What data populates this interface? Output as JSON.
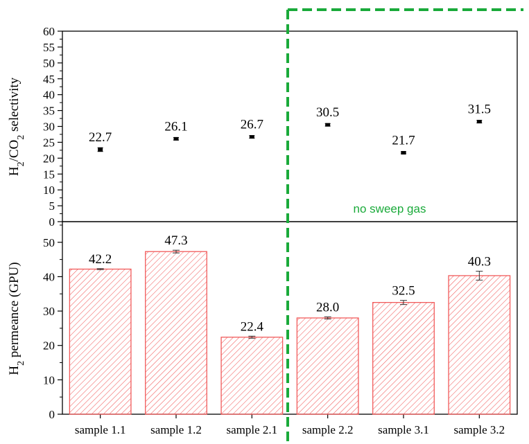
{
  "chart_data": [
    {
      "type": "scatter",
      "categories": [
        "sample 1.1",
        "sample 1.2",
        "sample 2.1",
        "sample 2.2",
        "sample 3.1",
        "sample 3.2"
      ],
      "values": [
        22.7,
        26.1,
        26.7,
        30.5,
        21.7,
        31.5
      ],
      "value_labels": [
        "22.7",
        "26.1",
        "26.7",
        "30.5",
        "21.7",
        "31.5"
      ],
      "errors": [
        0.6,
        0.4,
        0.4,
        0.4,
        0.3,
        0.4
      ],
      "ylabel_parts": [
        "H",
        "2",
        "/CO",
        "2",
        " selectivity"
      ],
      "ylim": [
        0,
        60
      ],
      "yticks": [
        0,
        5,
        10,
        15,
        20,
        25,
        30,
        35,
        40,
        45,
        50,
        55,
        60
      ],
      "marker_color": "#000000"
    },
    {
      "type": "bar",
      "categories": [
        "sample 1.1",
        "sample 1.2",
        "sample 2.1",
        "sample 2.2",
        "sample 3.1",
        "sample 3.2"
      ],
      "values": [
        42.2,
        47.3,
        22.4,
        28.0,
        32.5,
        40.3
      ],
      "value_labels": [
        "42.2",
        "47.3",
        "22.4",
        "28.0",
        "32.5",
        "40.3"
      ],
      "errors": [
        0.15,
        0.4,
        0.3,
        0.3,
        0.6,
        1.3
      ],
      "ylabel_parts": [
        "H",
        "2",
        " permeance (GPU)"
      ],
      "ylim": [
        0,
        56
      ],
      "yticks": [
        0,
        10,
        20,
        30,
        40,
        50
      ],
      "bar_color": "#f15a5a",
      "hatch": "diagonal"
    }
  ],
  "annotation": {
    "text": "no sweep gas",
    "color": "#1aaa3a",
    "divider_after_category": "sample 2.1"
  }
}
